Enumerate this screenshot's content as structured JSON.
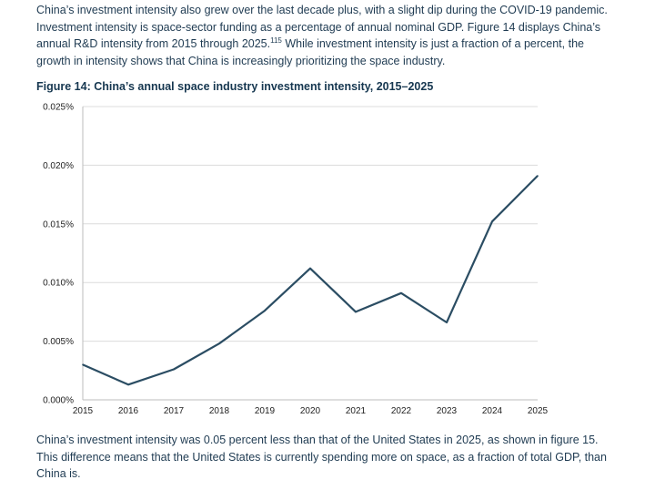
{
  "text": {
    "para_top_1": "China’s investment intensity also grew over the last decade plus, with a slight dip during the COVID-19 pandemic. Investment intensity is space-sector funding as a percentage of annual nominal GDP. Figure 14 displays China’s annual R&D intensity from 2015 through 2025.",
    "footnote_ref": "115",
    "para_top_2": " While investment intensity is just a fraction of a percent, the growth in intensity shows that China is increasingly prioritizing the space industry.",
    "para_bottom": "China’s investment intensity was 0.05 percent less than that of the United States in 2025, as shown in figure 15. This difference means that the United States is currently spending more on space, as a fraction of total GDP, than China is."
  },
  "chart_data": {
    "type": "line",
    "title": "Figure 14: China’s annual space industry investment intensity, 2015–2025",
    "xlabel": "",
    "ylabel": "",
    "x": [
      "2015",
      "2016",
      "2017",
      "2018",
      "2019",
      "2020",
      "2021",
      "2022",
      "2023",
      "2024",
      "2025"
    ],
    "values": [
      0.003,
      0.0013,
      0.0026,
      0.0048,
      0.0076,
      0.0112,
      0.0075,
      0.0091,
      0.0066,
      0.0152,
      0.0191
    ],
    "ylim": [
      0,
      0.025
    ],
    "yticks": [
      0,
      0.005,
      0.01,
      0.015,
      0.02,
      0.025
    ],
    "ytick_labels": [
      "0.000%",
      "0.005%",
      "0.010%",
      "0.015%",
      "0.020%",
      "0.025%"
    ],
    "grid": "horizontal",
    "legend": "none",
    "line_color": "#2b4d63"
  }
}
